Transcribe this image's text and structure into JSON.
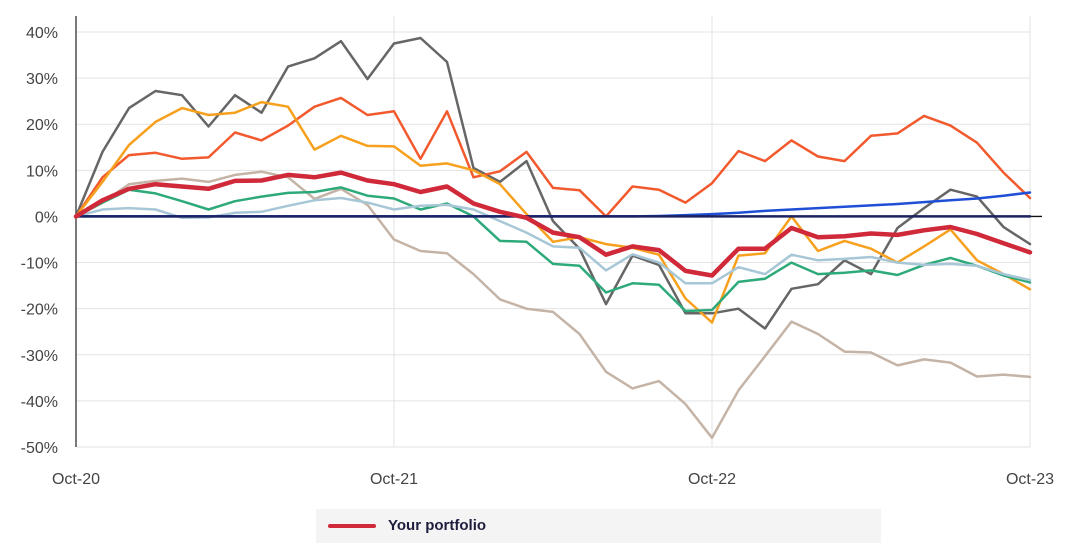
{
  "chart_data": {
    "type": "line",
    "x_ticks": [
      "Oct-20",
      "Oct-21",
      "Oct-22",
      "Oct-23"
    ],
    "ylim": [
      -50,
      40
    ],
    "y_ticks": [
      40,
      30,
      20,
      10,
      0,
      -10,
      -20,
      -30,
      -40,
      -50
    ],
    "y_tick_labels": [
      "40%",
      "30%",
      "20%",
      "10%",
      "0%",
      "-10%",
      "-20%",
      "-30%",
      "-40%",
      "-50%"
    ],
    "grid": true,
    "legend_position": "bottom",
    "x": [
      0,
      1,
      2,
      3,
      4,
      5,
      6,
      7,
      8,
      9,
      10,
      11,
      12,
      13,
      14,
      15,
      16,
      17,
      18,
      19,
      20,
      21,
      22,
      23,
      24,
      25,
      26,
      27,
      28,
      29,
      30,
      31,
      32,
      33,
      34,
      35,
      36
    ],
    "series": [
      {
        "name": "Your portfolio",
        "color": "#d0293a",
        "width": 4.5,
        "in_legend": true,
        "values": [
          0,
          3.5,
          6,
          7,
          6.5,
          6,
          7.7,
          7.8,
          9,
          8.5,
          9.5,
          7.8,
          7,
          5.3,
          6.5,
          2.8,
          1,
          -0.3,
          -3.5,
          -4.5,
          -8.3,
          -6.5,
          -7.3,
          -11.8,
          -12.8,
          -7,
          -7,
          -2.5,
          -4.5,
          -4.3,
          -3.7,
          -4,
          -3,
          -2.3,
          -3.8,
          -5.8,
          -7.8
        ]
      },
      {
        "color": "#666666",
        "width": 2.5,
        "values": [
          0,
          14,
          23.5,
          27.2,
          26.3,
          19.5,
          26.3,
          22.5,
          32.5,
          34.3,
          38,
          29.8,
          37.5,
          38.7,
          33.5,
          10.5,
          7.5,
          12,
          -1,
          -7,
          -19,
          -8.5,
          -10.5,
          -21,
          -21,
          -20,
          -24.3,
          -15.7,
          -14.7,
          -9.5,
          -12.5,
          -2.5,
          1.8,
          5.8,
          4.3,
          -2.3,
          -6
        ]
      },
      {
        "color": "#f25a2e",
        "width": 2.5,
        "values": [
          0,
          8.5,
          13.3,
          13.8,
          12.5,
          12.8,
          18.2,
          16.5,
          19.7,
          23.8,
          25.7,
          22,
          22.8,
          12.5,
          22.8,
          8.5,
          9.8,
          14,
          6.2,
          5.7,
          0,
          6.5,
          5.8,
          3,
          7.2,
          14.2,
          12,
          16.5,
          13,
          12,
          17.5,
          18,
          21.8,
          19.7,
          16,
          9.5,
          4
        ]
      },
      {
        "color": "#f7a01e",
        "width": 2.5,
        "values": [
          0,
          7.5,
          15.5,
          20.5,
          23.5,
          22,
          22.5,
          24.8,
          23.8,
          14.5,
          17.5,
          15.3,
          15.2,
          11,
          11.5,
          10,
          7,
          0.5,
          -5.5,
          -4.5,
          -6,
          -6.8,
          -8.3,
          -17.8,
          -23,
          -8.5,
          -8,
          0,
          -7.5,
          -5.3,
          -7,
          -10,
          -6.5,
          -2.8,
          -9.5,
          -12.5,
          -15.8
        ]
      },
      {
        "color": "#c5b4a6",
        "width": 2.5,
        "values": [
          0,
          3,
          7,
          7.7,
          8.2,
          7.5,
          9,
          9.7,
          8.5,
          3.8,
          6,
          2.5,
          -5,
          -7.5,
          -8,
          -12.5,
          -18,
          -20,
          -20.7,
          -25.5,
          -33.7,
          -37.3,
          -35.7,
          -40.7,
          -48,
          -37.7,
          -30.3,
          -22.8,
          -25.5,
          -29.3,
          -29.5,
          -32.3,
          -31,
          -31.7,
          -34.7,
          -34.3,
          -34.8
        ]
      },
      {
        "color": "#2eaa7a",
        "width": 2.5,
        "values": [
          0,
          3,
          5.8,
          5,
          3.3,
          1.5,
          3.3,
          4.3,
          5.1,
          5.3,
          6.3,
          4.5,
          3.9,
          1.5,
          2.8,
          0,
          -5.3,
          -5.5,
          -10.3,
          -10.7,
          -16.5,
          -14.5,
          -14.8,
          -20.5,
          -20.3,
          -14.2,
          -13.5,
          -10,
          -12.5,
          -12.2,
          -11.7,
          -12.7,
          -10.5,
          -9,
          -10.7,
          -12.8,
          -14.3
        ]
      },
      {
        "color": "#a7c7d6",
        "width": 2.5,
        "values": [
          0,
          1.5,
          1.8,
          1.5,
          -0.3,
          -0.2,
          0.8,
          1,
          2.3,
          3.5,
          4,
          3,
          1.5,
          2.3,
          2.5,
          1.5,
          -1,
          -3.5,
          -6.5,
          -6.8,
          -11.7,
          -8.2,
          -10,
          -14.5,
          -14.5,
          -11,
          -12.5,
          -8.3,
          -9.5,
          -9.2,
          -8.8,
          -10,
          -10.5,
          -10.3,
          -10.7,
          -12.5,
          -13.8
        ]
      },
      {
        "color": "#1f4fd6",
        "width": 2.5,
        "values": [
          0,
          0,
          0,
          0,
          0,
          0,
          0,
          0,
          0,
          0,
          0,
          0,
          0,
          0,
          0,
          0,
          0,
          0,
          0,
          0,
          0,
          0,
          0.1,
          0.3,
          0.5,
          0.8,
          1.2,
          1.5,
          1.8,
          2.1,
          2.4,
          2.7,
          3.1,
          3.5,
          3.9,
          4.5,
          5.2
        ]
      },
      {
        "color": "#1a2260",
        "width": 2.5,
        "values": [
          0,
          0,
          0,
          0,
          0,
          0,
          0,
          0,
          0,
          0,
          0,
          0,
          0,
          0,
          0,
          0,
          0,
          0,
          0,
          0,
          0,
          0,
          0,
          0,
          0,
          0,
          0,
          0,
          0,
          0,
          0,
          0,
          0,
          0,
          0,
          0,
          0
        ]
      }
    ]
  },
  "legend": {
    "items": [
      {
        "label": "Your portfolio",
        "color": "#d0293a"
      }
    ]
  }
}
